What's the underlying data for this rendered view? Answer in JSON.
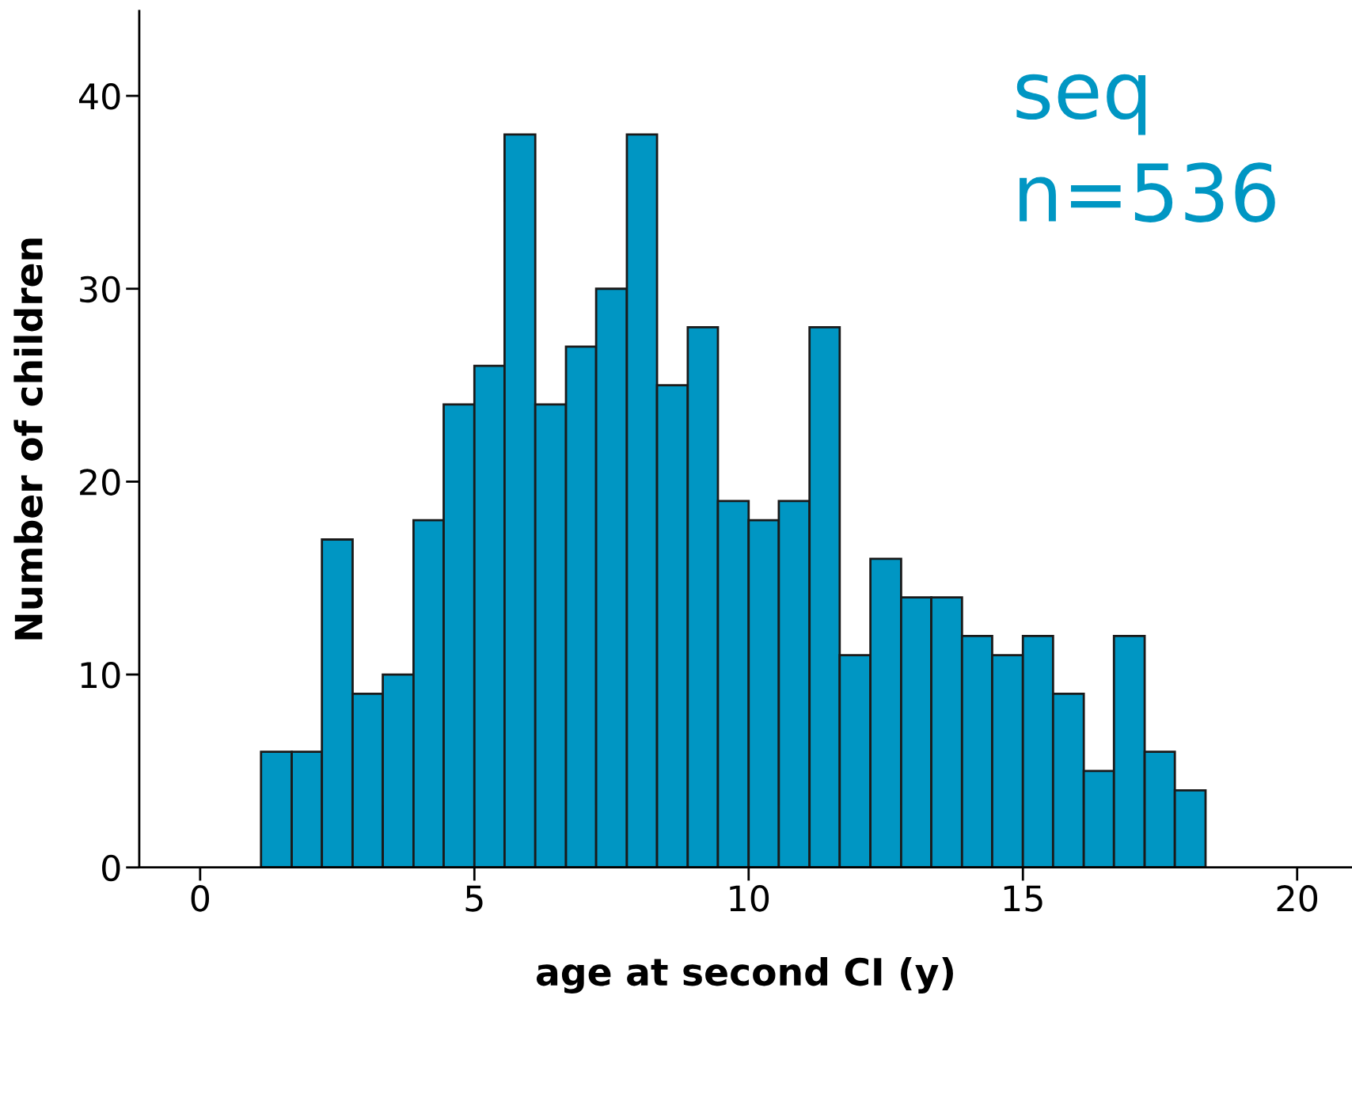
{
  "chart_data": {
    "type": "histogram",
    "xlabel": "age at second CI (y)",
    "ylabel": "Number of children",
    "bins": [
      1.11,
      1.67,
      2.22,
      2.78,
      3.33,
      3.89,
      4.44,
      5.0,
      5.55,
      6.11,
      6.67,
      7.22,
      7.78,
      8.33,
      8.89,
      9.44,
      10.0,
      10.55,
      11.11,
      11.66,
      12.22,
      12.78,
      13.33,
      13.89,
      14.44,
      15.0,
      15.55,
      16.11,
      16.66,
      17.22,
      17.77,
      18.33
    ],
    "values": [
      6,
      6,
      17,
      9,
      10,
      18,
      24,
      26,
      38,
      24,
      27,
      30,
      38,
      25,
      28,
      19,
      18,
      19,
      28,
      11,
      16,
      14,
      14,
      12,
      11,
      12,
      9,
      5,
      12,
      6,
      4
    ],
    "color": "#0096c3",
    "xlim": [
      -1.11,
      21.0
    ],
    "ylim": [
      0,
      44.4
    ],
    "xticks": [
      0,
      5,
      10,
      15,
      20
    ],
    "yticks": [
      0,
      10,
      20,
      30,
      40
    ],
    "grid": false,
    "legend": false,
    "annotations": [
      "seq",
      "n=536"
    ]
  }
}
